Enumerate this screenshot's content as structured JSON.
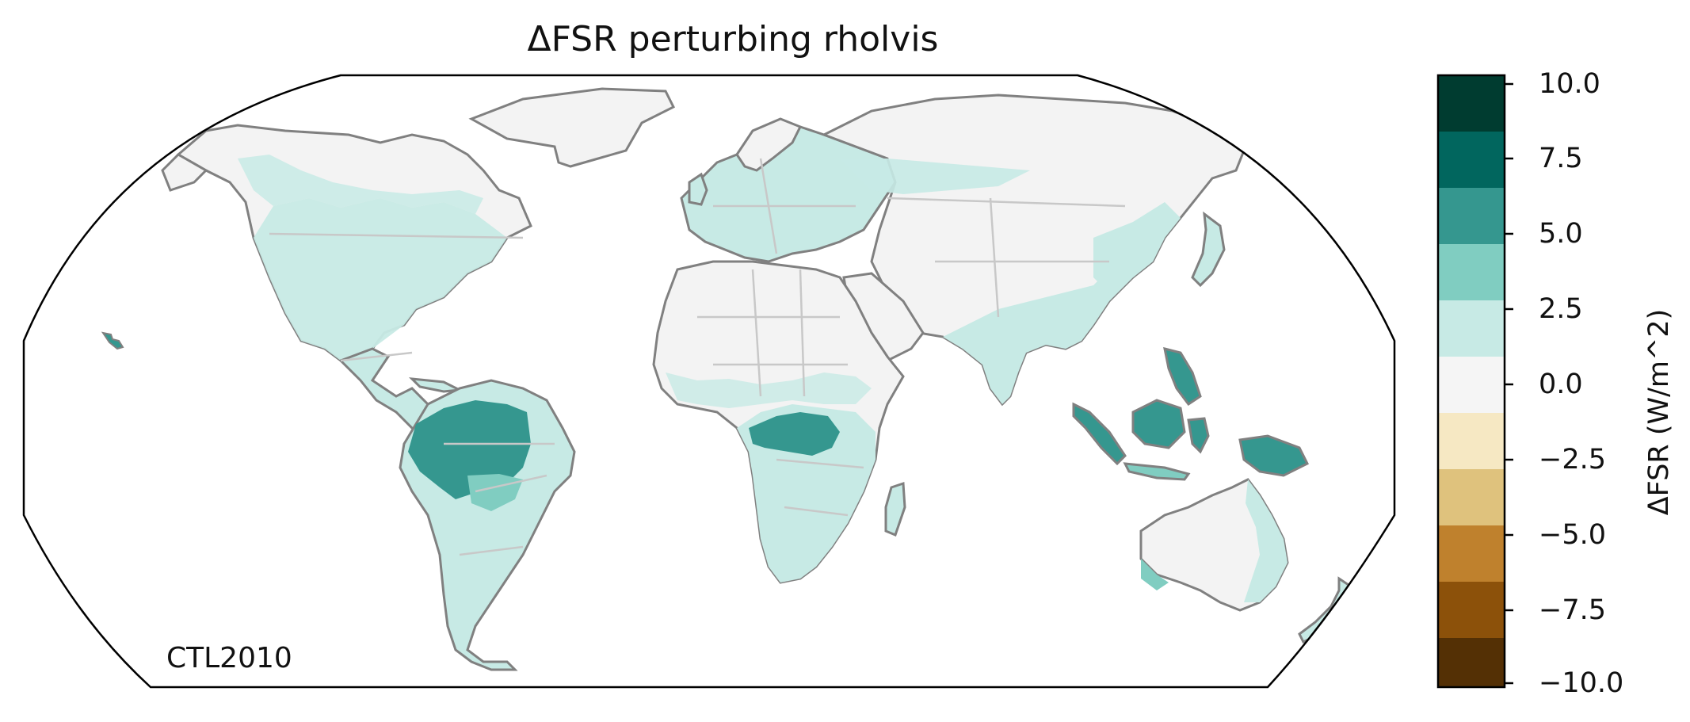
{
  "title": "ΔFSR perturbing rholvis",
  "corner_label": "CTL2010",
  "colorbar": {
    "label": "ΔFSR (W/m^2)",
    "min": -10.0,
    "max": 10.0,
    "ticks": [
      "10.0",
      "7.5",
      "5.0",
      "2.5",
      "0.0",
      "−2.5",
      "−5.0",
      "−7.5",
      "−10.0"
    ],
    "bins": [
      {
        "range": [
          7.5,
          10.0
        ],
        "color": "#003c30"
      },
      {
        "range": [
          5.0,
          7.5
        ],
        "color": "#01665e"
      },
      {
        "range": [
          2.5,
          5.0
        ],
        "color": "#35978f"
      },
      {
        "range": [
          1.25,
          2.5
        ],
        "color": "#80cdc1"
      },
      {
        "range": [
          0.0,
          1.25
        ],
        "color": "#c7eae5"
      },
      {
        "range": [
          -1.25,
          0.0
        ],
        "color": "#f5f5f5"
      },
      {
        "range": [
          -2.5,
          -1.25
        ],
        "color": "#f6e8c3"
      },
      {
        "range": [
          -5.0,
          -2.5
        ],
        "color": "#dfc27d"
      },
      {
        "range": [
          -7.5,
          -5.0
        ],
        "color": "#bf812d"
      },
      {
        "range": [
          -10.0,
          -7.5
        ],
        "color": "#8c510a"
      },
      {
        "range": [
          -10.0,
          -10.0
        ],
        "color": "#543005"
      }
    ]
  },
  "map": {
    "projection": "Robinson",
    "land_base_color": "#f3f3f3",
    "coastline_color": "#808080",
    "border_color": "#c8c8c8",
    "regions": [
      {
        "name": "Amazon basin",
        "color": "#35978f"
      },
      {
        "name": "Congo basin",
        "color": "#35978f"
      },
      {
        "name": "Maritime Southeast Asia",
        "color": "#35978f"
      },
      {
        "name": "New Guinea",
        "color": "#35978f"
      },
      {
        "name": "Eastern North America",
        "color": "#c7eae5"
      },
      {
        "name": "Northern Europe",
        "color": "#c7eae5"
      },
      {
        "name": "South and East Asia",
        "color": "#c7eae5"
      },
      {
        "name": "Southern South America",
        "color": "#c7eae5"
      },
      {
        "name": "Southern Africa",
        "color": "#c7eae5"
      },
      {
        "name": "Coastal Australia",
        "color": "#c7eae5"
      }
    ]
  }
}
